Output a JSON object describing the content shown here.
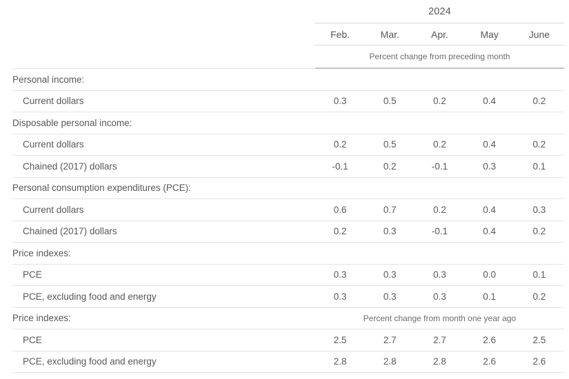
{
  "colors": {
    "text": "#58585a",
    "muted_text": "#6b6b6b",
    "row_line": "#e3e3e3",
    "header_line": "#d8d8d8",
    "strong_line": "#c3c3c3"
  },
  "table": {
    "year": "2024",
    "months": [
      "Feb.",
      "Mar.",
      "Apr.",
      "May",
      "June"
    ],
    "span_headers": {
      "preceding_month": "Percent change from preceding month",
      "year_ago": "Percent change from month one year ago"
    },
    "rows": [
      {
        "type": "section",
        "label": "Personal income:",
        "values": []
      },
      {
        "type": "data",
        "label": "Current dollars",
        "values": [
          "0.3",
          "0.5",
          "0.2",
          "0.4",
          "0.2"
        ]
      },
      {
        "type": "section",
        "label": "Disposable personal income:",
        "values": []
      },
      {
        "type": "data",
        "label": "Current dollars",
        "values": [
          "0.2",
          "0.5",
          "0.2",
          "0.4",
          "0.2"
        ]
      },
      {
        "type": "data",
        "label": "Chained (2017) dollars",
        "values": [
          "-0.1",
          "0.2",
          "-0.1",
          "0.3",
          "0.1"
        ]
      },
      {
        "type": "section",
        "label": "Personal consumption expenditures (PCE):",
        "values": []
      },
      {
        "type": "data",
        "label": "Current dollars",
        "values": [
          "0.6",
          "0.7",
          "0.2",
          "0.4",
          "0.3"
        ]
      },
      {
        "type": "data",
        "label": "Chained (2017) dollars",
        "values": [
          "0.2",
          "0.3",
          "-0.1",
          "0.4",
          "0.2"
        ]
      },
      {
        "type": "section",
        "label": "Price indexes:",
        "values": []
      },
      {
        "type": "data",
        "label": "PCE",
        "values": [
          "0.3",
          "0.3",
          "0.3",
          "0.0",
          "0.1"
        ]
      },
      {
        "type": "data",
        "label": "PCE, excluding food and energy",
        "values": [
          "0.3",
          "0.3",
          "0.3",
          "0.1",
          "0.2"
        ]
      },
      {
        "type": "section",
        "label": "Price indexes:",
        "note": "Percent change from month one year ago",
        "values": []
      },
      {
        "type": "data",
        "label": "PCE",
        "values": [
          "2.5",
          "2.7",
          "2.7",
          "2.6",
          "2.5"
        ]
      },
      {
        "type": "data",
        "label": "PCE, excluding food and energy",
        "values": [
          "2.8",
          "2.8",
          "2.8",
          "2.6",
          "2.6"
        ]
      }
    ]
  }
}
